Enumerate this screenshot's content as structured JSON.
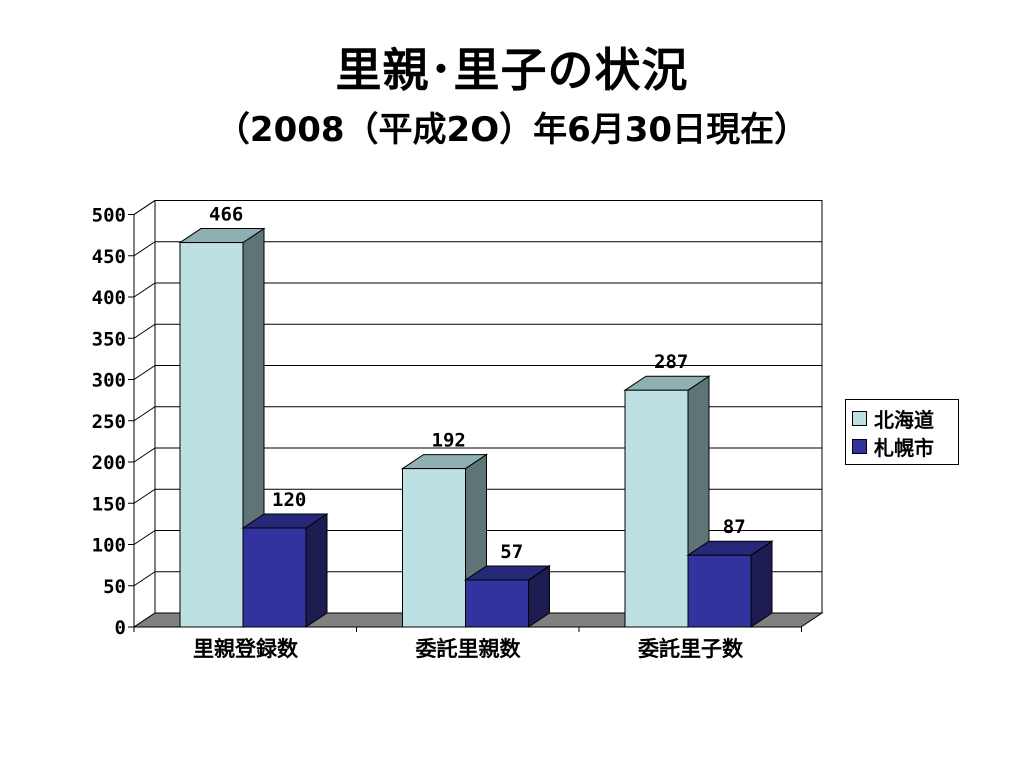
{
  "slide": {
    "title": "里親･里子の状況",
    "subtitle": "（2008（平成2O）年6月30日現在）"
  },
  "colors": {
    "hokkaido": "#bde0e2",
    "sapporo": "#3333a0"
  },
  "chart_data": {
    "type": "bar",
    "three_d": true,
    "categories": [
      "里親登録数",
      "委託里親数",
      "委託里子数"
    ],
    "series": [
      {
        "name": "北海道",
        "values": [
          466,
          192,
          287
        ]
      },
      {
        "name": "札幌市",
        "values": [
          120,
          57,
          87
        ]
      }
    ],
    "data_labels": [
      [
        "466",
        "192",
        "287"
      ],
      [
        "120",
        "57",
        "87"
      ]
    ],
    "y_ticks": [
      "0",
      "50",
      "100",
      "150",
      "200",
      "250",
      "300",
      "350",
      "400",
      "450",
      "500"
    ],
    "ylim": [
      0,
      500
    ],
    "grid": true,
    "legend": "right"
  }
}
